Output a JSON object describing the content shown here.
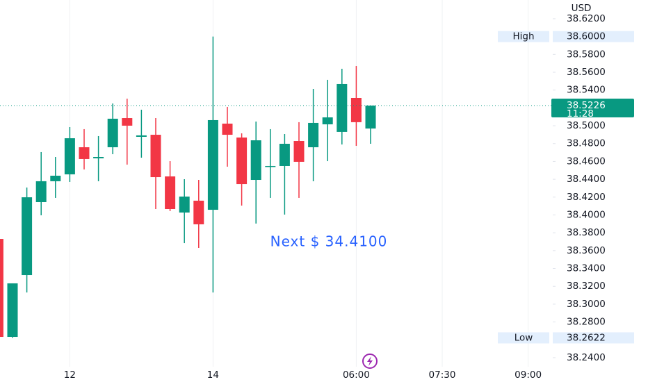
{
  "chart_data": {
    "type": "candlestick",
    "currency": "USD",
    "categories": [
      null,
      null,
      null,
      null,
      null,
      "12",
      null,
      null,
      null,
      null,
      null,
      null,
      null,
      null,
      null,
      "14",
      null,
      null,
      null,
      null,
      null,
      null,
      null,
      null,
      null,
      "06:00",
      null,
      null,
      null,
      null,
      null,
      "07:30",
      null,
      null,
      null,
      null,
      null,
      "09:00"
    ],
    "open": [
      38.3731,
      38.2633,
      38.3326,
      38.4144,
      38.4378,
      38.4455,
      38.4759,
      38.4635,
      38.4759,
      38.5086,
      38.4876,
      38.4899,
      38.4432,
      38.4027,
      38.416,
      38.4058,
      38.5024,
      38.4868,
      38.4393,
      38.4541,
      38.4549,
      38.4829,
      38.4759,
      38.5016,
      38.4931,
      38.5312,
      38.4969,
      null,
      null,
      null,
      null,
      null,
      null,
      null,
      null,
      null,
      null,
      null
    ],
    "high": [
      38.3731,
      38.3233,
      38.4307,
      38.4705,
      38.465,
      38.4985,
      38.4962,
      38.4884,
      38.525,
      38.5304,
      38.518,
      38.5086,
      38.4603,
      38.4401,
      38.4393,
      38.6,
      38.5211,
      38.4915,
      38.5047,
      38.4962,
      38.4907,
      38.504,
      38.5413,
      38.5515,
      38.5639,
      38.567,
      38.5226,
      null,
      null,
      null,
      null,
      null,
      null,
      null,
      null,
      null,
      null,
      null
    ],
    "low": [
      38.2633,
      38.2622,
      38.3131,
      38.3996,
      38.4191,
      38.437,
      38.451,
      38.4378,
      38.4681,
      38.4564,
      38.4642,
      38.4066,
      38.4043,
      38.3684,
      38.363,
      38.3131,
      38.4541,
      38.4105,
      38.3903,
      38.4191,
      38.4004,
      38.4191,
      38.4378,
      38.4603,
      38.479,
      38.4775,
      38.4798,
      null,
      null,
      null,
      null,
      null,
      null,
      null,
      null,
      null,
      null,
      null
    ],
    "close": [
      38.2633,
      38.3233,
      38.4198,
      38.4378,
      38.444,
      38.486,
      38.4627,
      38.465,
      38.5079,
      38.5001,
      38.4892,
      38.4424,
      38.4066,
      38.4206,
      38.3895,
      38.5063,
      38.4899,
      38.4346,
      38.4837,
      38.4549,
      38.4798,
      38.4596,
      38.5032,
      38.5094,
      38.5468,
      38.504,
      38.5226,
      null,
      null,
      null,
      null,
      null,
      null,
      null,
      null,
      null,
      null,
      null
    ],
    "up_color": "#089981",
    "down_color": "#f23645",
    "ylim": [
      38.2127,
      38.641
    ],
    "yticks": [
      {
        "value": 38.62,
        "label": "38.6200"
      },
      {
        "value": 38.58,
        "label": "38.5800"
      },
      {
        "value": 38.56,
        "label": "38.5600"
      },
      {
        "value": 38.54,
        "label": "38.5400"
      },
      {
        "value": 38.5,
        "label": "38.5000"
      },
      {
        "value": 38.48,
        "label": "38.4800"
      },
      {
        "value": 38.46,
        "label": "38.4600"
      },
      {
        "value": 38.44,
        "label": "38.4400"
      },
      {
        "value": 38.42,
        "label": "38.4200"
      },
      {
        "value": 38.4,
        "label": "38.4000"
      },
      {
        "value": 38.38,
        "label": "38.3800"
      },
      {
        "value": 38.36,
        "label": "38.3600"
      },
      {
        "value": 38.34,
        "label": "38.3400"
      },
      {
        "value": 38.32,
        "label": "38.3200"
      },
      {
        "value": 38.3,
        "label": "38.3000"
      },
      {
        "value": 38.28,
        "label": "38.2800"
      },
      {
        "value": 38.24,
        "label": "38.2400"
      }
    ],
    "high_marker": {
      "label": "High",
      "value": 38.6,
      "value_label": "38.6000"
    },
    "low_marker": {
      "label": "Low",
      "value": 38.2622,
      "value_label": "38.2622"
    },
    "last_price": {
      "value": 38.5226,
      "value_label": "38.5226",
      "countdown": "11:28"
    },
    "annotation": "Next $ 34.4100"
  }
}
